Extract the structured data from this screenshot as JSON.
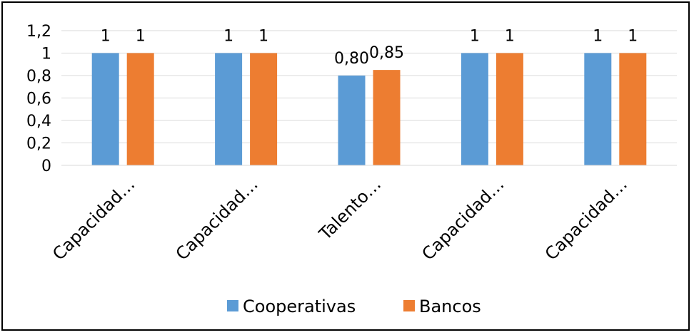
{
  "chart_data": {
    "type": "bar",
    "categories": [
      "Capacidad…",
      "Capacidad…",
      "Talento…",
      "Capacidad…",
      "Capacidad…"
    ],
    "series": [
      {
        "name": "Cooperativas",
        "values": [
          1,
          1,
          0.8,
          1,
          1
        ],
        "labels": [
          "1",
          "1",
          "0,80",
          "1",
          "1"
        ],
        "color": "#5b9bd5"
      },
      {
        "name": "Bancos",
        "values": [
          1,
          1,
          0.85,
          1,
          1
        ],
        "labels": [
          "1",
          "1",
          "0,85",
          "1",
          "1"
        ],
        "color": "#ed7d31"
      }
    ],
    "y_ticks": [
      {
        "value": 0,
        "label": "0"
      },
      {
        "value": 0.2,
        "label": "0,2"
      },
      {
        "value": 0.4,
        "label": "0,4"
      },
      {
        "value": 0.6,
        "label": "0,6"
      },
      {
        "value": 0.8,
        "label": "0,8"
      },
      {
        "value": 1,
        "label": "1"
      },
      {
        "value": 1.2,
        "label": "1,2"
      }
    ],
    "ylim": [
      0,
      1.2
    ],
    "grid": true,
    "legend": "bottom",
    "title": "",
    "xlabel": "",
    "ylabel": ""
  }
}
